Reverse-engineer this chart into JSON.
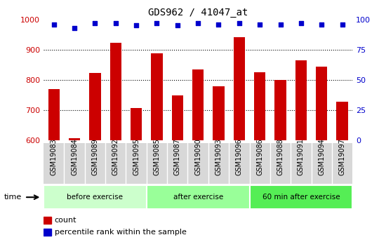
{
  "title": "GDS962 / 41047_at",
  "categories": [
    "GSM19083",
    "GSM19084",
    "GSM19089",
    "GSM19092",
    "GSM19095",
    "GSM19085",
    "GSM19087",
    "GSM19090",
    "GSM19093",
    "GSM19096",
    "GSM19086",
    "GSM19088",
    "GSM19091",
    "GSM19094",
    "GSM19097"
  ],
  "counts": [
    770,
    608,
    822,
    922,
    706,
    888,
    748,
    835,
    778,
    940,
    825,
    800,
    864,
    844,
    727
  ],
  "percentiles": [
    96,
    93,
    97,
    97,
    95,
    97,
    95,
    97,
    96,
    97,
    96,
    96,
    97,
    96,
    96
  ],
  "groups": [
    {
      "label": "before exercise",
      "start": 0,
      "end": 5,
      "color": "#ccffcc"
    },
    {
      "label": "after exercise",
      "start": 5,
      "end": 10,
      "color": "#99ff99"
    },
    {
      "label": "60 min after exercise",
      "start": 10,
      "end": 15,
      "color": "#55ee55"
    }
  ],
  "ylim": [
    600,
    1000
  ],
  "y2lim": [
    0,
    100
  ],
  "yticks": [
    600,
    700,
    800,
    900,
    1000
  ],
  "y2ticks": [
    0,
    25,
    50,
    75,
    100
  ],
  "bar_color": "#cc0000",
  "dot_color": "#0000cc",
  "plot_bg": "#ffffff",
  "tick_bg": "#d8d8d8",
  "grid_color": "#000000",
  "tick_label_color_left": "#cc0000",
  "tick_label_color_right": "#0000cc",
  "bar_width": 0.55,
  "legend_count_label": "count",
  "legend_pct_label": "percentile rank within the sample"
}
